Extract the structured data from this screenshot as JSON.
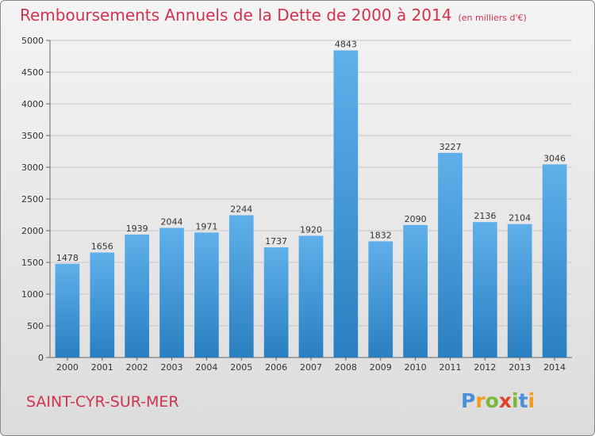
{
  "title": "Remboursements Annuels de la Dette de 2000 à 2014",
  "unit_note": "(en milliers d'€)",
  "commune": "SAINT-CYR-SUR-MER",
  "logo": {
    "text": "Proxiti",
    "letter_colors": [
      "#4a8fd8",
      "#f39a21",
      "#7bb935",
      "#e0412b",
      "#7bb935",
      "#4a8fd8",
      "#f39a21"
    ]
  },
  "colors": {
    "title": "#d1324f",
    "bar_top": "#5fb0ea",
    "bar_bottom": "#2a7fc1",
    "grid": "#c8c8c8"
  },
  "chart_data": {
    "type": "bar",
    "title": "Remboursements Annuels de la Dette de 2000 à 2014",
    "categories": [
      "2000",
      "2001",
      "2002",
      "2003",
      "2004",
      "2005",
      "2006",
      "2007",
      "2008",
      "2009",
      "2010",
      "2011",
      "2012",
      "2013",
      "2014"
    ],
    "values": [
      1478,
      1656,
      1939,
      2044,
      1971,
      2244,
      1737,
      1920,
      4843,
      1832,
      2090,
      3227,
      2136,
      2104,
      3046
    ],
    "ylim": [
      0,
      5000
    ],
    "yticks": [
      0,
      500,
      1000,
      1500,
      2000,
      2500,
      3000,
      3500,
      4000,
      4500,
      5000
    ],
    "grid": true,
    "data_labels": true
  }
}
